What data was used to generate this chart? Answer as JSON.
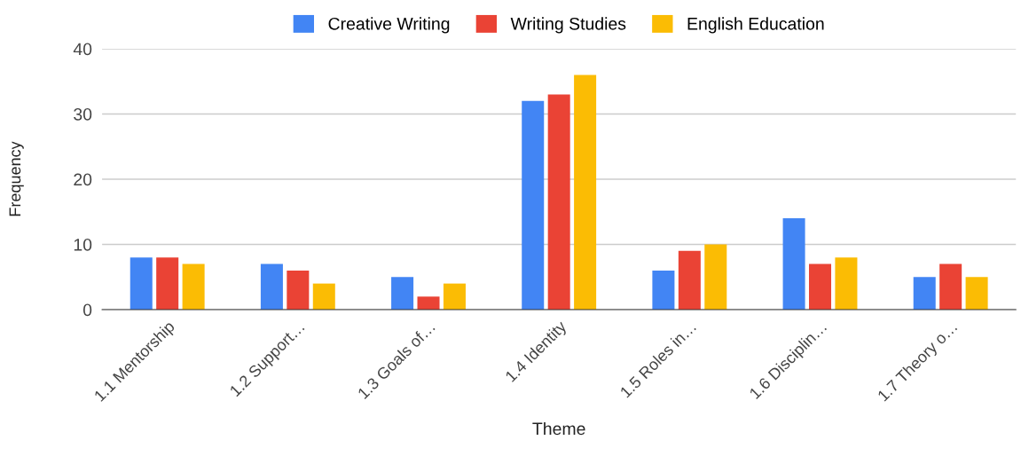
{
  "chart_data": {
    "type": "bar",
    "xlabel": "Theme",
    "ylabel": "Frequency",
    "categories": [
      "1.1 Mentorship",
      "1.2 Support…",
      "1.3 Goals of…",
      "1.4 Identity",
      "1.5 Roles in…",
      "1.6 Disciplin…",
      "1.7 Theory o…"
    ],
    "series": [
      {
        "name": "Creative Writing",
        "color": "#4285f4",
        "values": [
          8,
          7,
          5,
          32,
          6,
          14,
          5
        ]
      },
      {
        "name": "Writing Studies",
        "color": "#ea4335",
        "values": [
          8,
          6,
          2,
          33,
          9,
          7,
          7
        ]
      },
      {
        "name": "English Education",
        "color": "#fbbc04",
        "values": [
          7,
          4,
          4,
          36,
          10,
          8,
          5
        ]
      }
    ],
    "ylim": [
      0,
      40
    ],
    "yticks": [
      0,
      10,
      20,
      30,
      40
    ],
    "grid": "y",
    "legend": "top"
  }
}
